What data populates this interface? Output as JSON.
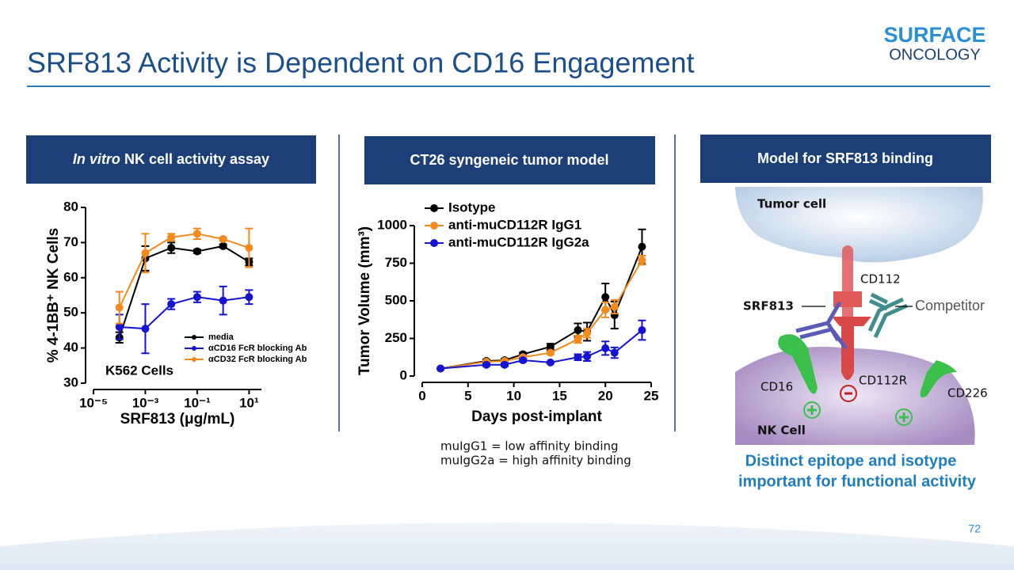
{
  "title": "SRF813 Activity is Dependent on CD16 Engagement",
  "logo": {
    "line1": "SURFACE",
    "line2": "ONCOLOGY"
  },
  "panels": [
    {
      "italic": "In vitro",
      "text": "NK cell activity assay"
    },
    {
      "text": "CT26 syngeneic tumor model"
    },
    {
      "text": "Model for SRF813 binding"
    }
  ],
  "chart_data": [
    {
      "type": "line",
      "x_scale": "log",
      "ylabel": "% 4-1BB⁺ NK Cells",
      "xlabel": "SRF813  (μg/mL)",
      "annotation": "K562 Cells",
      "x": [
        0.0001,
        0.001,
        0.01,
        0.1,
        1,
        10
      ],
      "xlim": [
        1e-05,
        30
      ],
      "xticks": [
        {
          "value": 1e-05,
          "label": "10⁻⁵"
        },
        {
          "value": 0.001,
          "label": "10⁻³"
        },
        {
          "value": 0.1,
          "label": "10⁻¹"
        },
        {
          "value": 10,
          "label": "10¹"
        }
      ],
      "ylim": [
        30,
        80
      ],
      "yticks": [
        30,
        40,
        50,
        60,
        70,
        80
      ],
      "legend": "lower right",
      "series": [
        {
          "name": "media",
          "color": "#000000",
          "values": [
            43,
            65.5,
            68.5,
            67.5,
            69,
            64.5
          ],
          "errors": [
            1.5,
            3.5,
            1.5,
            0.5,
            0.5,
            1
          ]
        },
        {
          "name": "αCD16 FcR blocking Ab",
          "color": "#1414d2",
          "values": [
            46,
            45.5,
            52.5,
            54.5,
            53.5,
            54.5
          ],
          "errors": [
            3.5,
            7,
            1.5,
            1.5,
            4,
            2
          ]
        },
        {
          "name": "αCD32 FcR blocking Ab",
          "color": "#f28a1e",
          "values": [
            51.5,
            67,
            71.5,
            72.5,
            71,
            68.5
          ],
          "errors": [
            4.5,
            5.5,
            1,
            1.5,
            0.5,
            5.5
          ]
        }
      ]
    },
    {
      "type": "line",
      "x_scale": "linear",
      "ylabel": "Tumor Volume (mm³)",
      "xlabel": "Days post-implant",
      "x": [
        2,
        7,
        9,
        11,
        14,
        17,
        18,
        20,
        21,
        24
      ],
      "xlim": [
        0,
        25
      ],
      "xticks": [
        0,
        5,
        10,
        15,
        20,
        25
      ],
      "ylim": [
        0,
        1000
      ],
      "yticks": [
        0,
        250,
        500,
        750,
        1000
      ],
      "legend": "upper left",
      "series": [
        {
          "name": "Isotype",
          "color": "#000000",
          "values": [
            50,
            100,
            105,
            145,
            195,
            305,
            295,
            525,
            405,
            860
          ],
          "errors": [
            0,
            10,
            10,
            10,
            20,
            45,
            60,
            90,
            90,
            115
          ]
        },
        {
          "name": "anti-muCD112R IgG1",
          "color": "#f28a1e",
          "values": [
            50,
            95,
            100,
            125,
            155,
            245,
            285,
            440,
            460,
            770
          ],
          "errors": [
            0,
            5,
            5,
            10,
            10,
            25,
            30,
            50,
            45,
            30
          ]
        },
        {
          "name": "anti-muCD112R IgG2a",
          "color": "#1414d2",
          "values": [
            50,
            75,
            75,
            105,
            90,
            125,
            130,
            185,
            155,
            305
          ],
          "errors": [
            0,
            10,
            10,
            10,
            5,
            20,
            30,
            45,
            35,
            65
          ]
        }
      ],
      "notes": [
        "muIgG1 = low affinity binding",
        "muIgG2a = high affinity binding"
      ]
    }
  ],
  "diagram": {
    "labels": {
      "tumor_cell": "Tumor cell",
      "cd112": "CD112",
      "srf813": "SRF813",
      "competitor": "Competitor",
      "cd16": "CD16",
      "cd112r": "CD112R",
      "cd226": "CD226",
      "nk_cell": "NK Cell"
    },
    "caption": [
      "Distinct epitope and isotype",
      "important for functional activity"
    ]
  },
  "page_number": "72"
}
